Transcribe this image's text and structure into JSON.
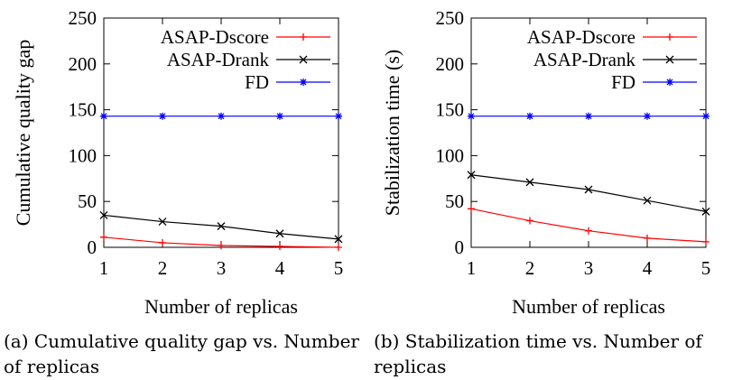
{
  "chart_data": [
    {
      "type": "line",
      "xlabel": "Number of replicas",
      "ylabel": "Cumulative quality gap",
      "x": [
        1,
        2,
        3,
        4,
        5
      ],
      "xlim": [
        1,
        5
      ],
      "ylim": [
        0,
        250
      ],
      "yticks": [
        0,
        50,
        100,
        150,
        200,
        250
      ],
      "xticks": [
        1,
        2,
        3,
        4,
        5
      ],
      "grid": false,
      "legend": "top-right",
      "series": [
        {
          "name": "ASAP-Dscore",
          "values": [
            11,
            5,
            2,
            1,
            0
          ],
          "color": "#ff0000",
          "marker": "+"
        },
        {
          "name": "ASAP-Drank",
          "values": [
            35,
            28,
            23,
            15,
            9
          ],
          "color": "#000000",
          "marker": "x"
        },
        {
          "name": "FD",
          "values": [
            143,
            143,
            143,
            143,
            143
          ],
          "color": "#0000ff",
          "marker": "*"
        }
      ]
    },
    {
      "type": "line",
      "xlabel": "Number of replicas",
      "ylabel": "Stabilization time (s)",
      "x": [
        1,
        2,
        3,
        4,
        5
      ],
      "xlim": [
        1,
        5
      ],
      "ylim": [
        0,
        250
      ],
      "yticks": [
        0,
        50,
        100,
        150,
        200,
        250
      ],
      "xticks": [
        1,
        2,
        3,
        4,
        5
      ],
      "grid": false,
      "legend": "top-right",
      "series": [
        {
          "name": "ASAP-Dscore",
          "values": [
            42,
            29,
            18,
            10,
            6
          ],
          "color": "#ff0000",
          "marker": "+"
        },
        {
          "name": "ASAP-Drank",
          "values": [
            79,
            71,
            63,
            51,
            39
          ],
          "color": "#000000",
          "marker": "x"
        },
        {
          "name": "FD",
          "values": [
            143,
            143,
            143,
            143,
            143
          ],
          "color": "#0000ff",
          "marker": "*"
        }
      ]
    }
  ],
  "captions": {
    "a": "(a) Cumulative quality gap vs. Number of replicas",
    "b": "(b) Stabilization time vs. Number of replicas"
  }
}
